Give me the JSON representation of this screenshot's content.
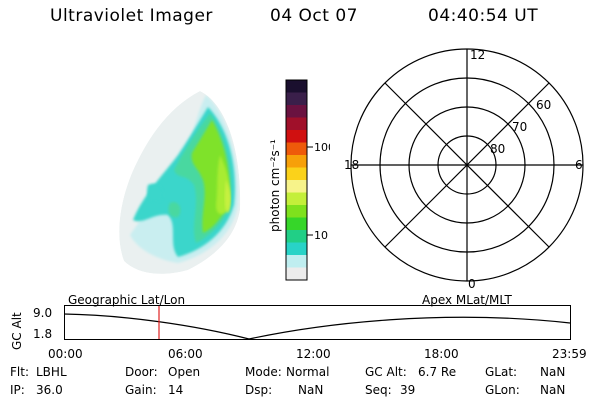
{
  "header": {
    "instrument": "Ultraviolet Imager",
    "date": "04 Oct 07",
    "time": "04:40:54 UT"
  },
  "colorbar": {
    "label": "photon cm⁻²s⁻¹",
    "ticks": [
      "100",
      "10"
    ],
    "colors": [
      "#1a0f2e",
      "#3a1f4a",
      "#6a1240",
      "#a0102a",
      "#d01010",
      "#ee5a0a",
      "#f7a009",
      "#fbd21a",
      "#f7f38a",
      "#c4ef3a",
      "#7fe11d",
      "#36d629",
      "#21cf86",
      "#28d3c7",
      "#bfeef0",
      "#ececec"
    ]
  },
  "image": {
    "palette": [
      "#eaf0f0",
      "#c9eef0",
      "#3bd6cb",
      "#48d8a0",
      "#7fe22a",
      "#a8ec30",
      "#c6f040"
    ]
  },
  "polar": {
    "mlt_labels": {
      "top": "12",
      "left": "18",
      "right": "6",
      "bottom": "0"
    },
    "lat_labels": [
      "60",
      "70",
      "80"
    ]
  },
  "timeline": {
    "left_label": "Geographic Lat/Lon",
    "right_label": "Apex  MLat/MLT",
    "ylabel": "GC Alt",
    "ytick_top": "9.0",
    "ytick_bottom": "1.8",
    "xticks": [
      "00:00",
      "06:00",
      "12:00",
      "18:00",
      "23:59"
    ],
    "marker_time": "04:40:54"
  },
  "info": {
    "flt_label": "Flt:",
    "flt_value": "LBHL",
    "door_label": "Door:",
    "door_value": "Open",
    "mode_label": "Mode:",
    "mode_value": "Normal",
    "gcalt_label": "GC Alt:",
    "gcalt_value": "6.7 Re",
    "glat_label": "GLat:",
    "glat_value": "NaN",
    "ip_label": "IP:",
    "ip_value": "36.0",
    "gain_label": "Gain:",
    "gain_value": "14",
    "dsp_label": "Dsp:",
    "dsp_value": "NaN",
    "seq_label": "Seq:",
    "seq_value": "39",
    "glon_label": "GLon:",
    "glon_value": "NaN"
  }
}
